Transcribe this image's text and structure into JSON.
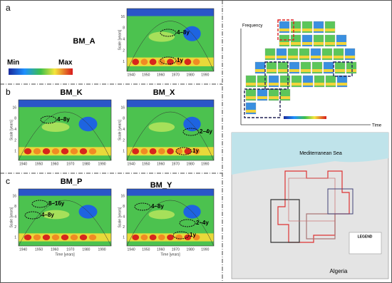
{
  "panel_a": {
    "label": "a",
    "colorbar": {
      "min": "Min",
      "max": "Max"
    },
    "plots": [
      {
        "title": "BM_A",
        "annotations": [
          "4–8y",
          "1y"
        ]
      }
    ]
  },
  "panel_b": {
    "label": "b",
    "plots": [
      {
        "title": "BM_K",
        "annotations": [
          "4–8y"
        ]
      },
      {
        "title": "BM_X",
        "annotations": [
          "2–4y",
          "1y"
        ]
      }
    ]
  },
  "panel_c": {
    "label": "c",
    "plots": [
      {
        "title": "BM_P",
        "annotations": [
          "8–16y",
          "4–8y"
        ]
      },
      {
        "title": "BM_Y",
        "annotations": [
          "4–8y",
          "2–4y",
          "1y"
        ]
      }
    ]
  },
  "axes": {
    "x_ticks": [
      "1940",
      "1950",
      "1960",
      "1970",
      "1980",
      "1990"
    ],
    "y_ticks": [
      "1",
      "2",
      "4",
      "8",
      "16"
    ],
    "x_label": "Time [years]",
    "y_label": "Scale [years]"
  },
  "tiles": {
    "y_axis": "Frequency",
    "x_axis": "Time"
  },
  "map": {
    "sea": "Mediterranean Sea",
    "country": "Algeria",
    "legend": "LEGEND"
  }
}
